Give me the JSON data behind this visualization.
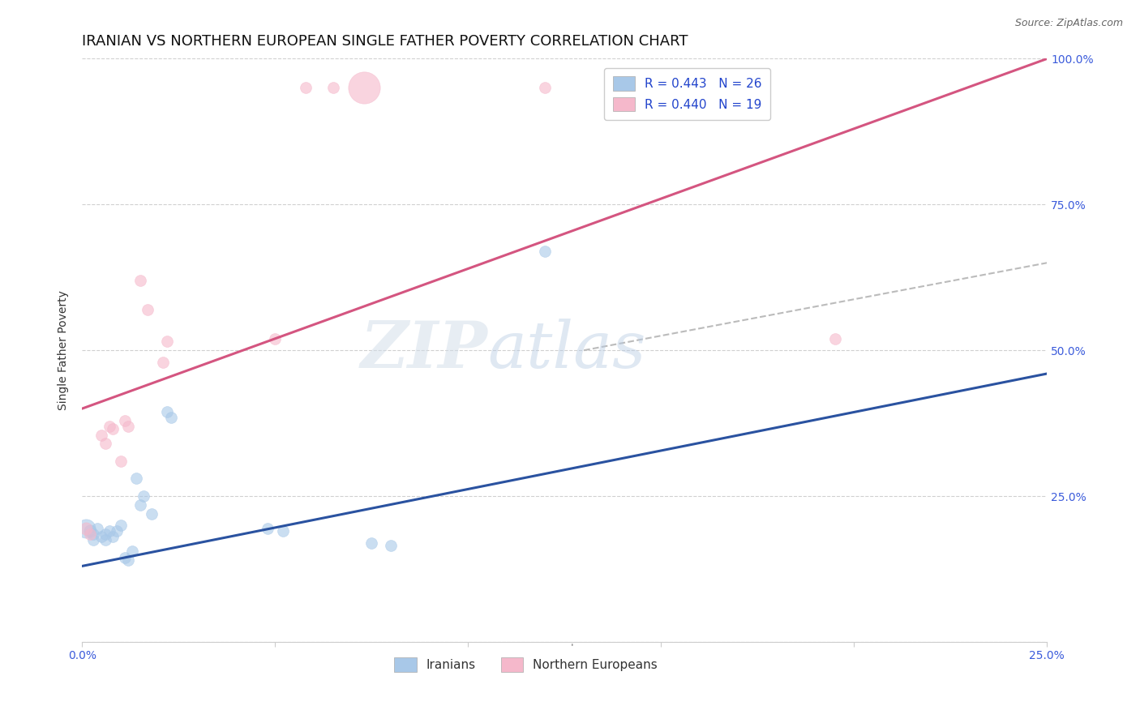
{
  "title": "IRANIAN VS NORTHERN EUROPEAN SINGLE FATHER POVERTY CORRELATION CHART",
  "source": "Source: ZipAtlas.com",
  "ylabel": "Single Father Poverty",
  "watermark_zip": "ZIP",
  "watermark_atlas": "atlas",
  "xlim": [
    0.0,
    0.25
  ],
  "ylim": [
    0.0,
    1.0
  ],
  "legend_r_blue": "R = 0.443",
  "legend_n_blue": "N = 26",
  "legend_r_pink": "R = 0.440",
  "legend_n_pink": "N = 19",
  "legend_label_blue": "Iranians",
  "legend_label_pink": "Northern Europeans",
  "blue_color": "#a8c8e8",
  "pink_color": "#f5b8cb",
  "line_blue_color": "#2a52a0",
  "line_pink_color": "#d45580",
  "line_dashed_color": "#bbbbbb",
  "blue_scatter": [
    [
      0.001,
      0.195
    ],
    [
      0.002,
      0.19
    ],
    [
      0.003,
      0.185
    ],
    [
      0.003,
      0.175
    ],
    [
      0.004,
      0.195
    ],
    [
      0.005,
      0.18
    ],
    [
      0.006,
      0.185
    ],
    [
      0.006,
      0.175
    ],
    [
      0.007,
      0.19
    ],
    [
      0.008,
      0.18
    ],
    [
      0.009,
      0.19
    ],
    [
      0.01,
      0.2
    ],
    [
      0.011,
      0.145
    ],
    [
      0.012,
      0.14
    ],
    [
      0.013,
      0.155
    ],
    [
      0.014,
      0.28
    ],
    [
      0.015,
      0.235
    ],
    [
      0.016,
      0.25
    ],
    [
      0.018,
      0.22
    ],
    [
      0.022,
      0.395
    ],
    [
      0.023,
      0.385
    ],
    [
      0.048,
      0.195
    ],
    [
      0.052,
      0.19
    ],
    [
      0.075,
      0.17
    ],
    [
      0.08,
      0.165
    ],
    [
      0.12,
      0.67
    ]
  ],
  "blue_scatter_sizes": [
    280,
    120,
    100,
    100,
    100,
    100,
    100,
    100,
    100,
    100,
    100,
    100,
    100,
    100,
    100,
    100,
    100,
    100,
    100,
    100,
    100,
    100,
    100,
    100,
    100,
    100
  ],
  "pink_scatter": [
    [
      0.001,
      0.195
    ],
    [
      0.002,
      0.185
    ],
    [
      0.005,
      0.355
    ],
    [
      0.006,
      0.34
    ],
    [
      0.007,
      0.37
    ],
    [
      0.008,
      0.365
    ],
    [
      0.01,
      0.31
    ],
    [
      0.011,
      0.38
    ],
    [
      0.012,
      0.37
    ],
    [
      0.015,
      0.62
    ],
    [
      0.017,
      0.57
    ],
    [
      0.021,
      0.48
    ],
    [
      0.022,
      0.515
    ],
    [
      0.05,
      0.52
    ],
    [
      0.058,
      0.95
    ],
    [
      0.065,
      0.95
    ],
    [
      0.073,
      0.95
    ],
    [
      0.12,
      0.95
    ],
    [
      0.195,
      0.52
    ]
  ],
  "pink_scatter_sizes": [
    120,
    100,
    100,
    100,
    100,
    100,
    100,
    100,
    100,
    100,
    100,
    100,
    100,
    100,
    100,
    100,
    800,
    100,
    100
  ],
  "blue_line_x": [
    0.0,
    0.25
  ],
  "blue_line_y": [
    0.13,
    0.46
  ],
  "pink_line_x": [
    0.0,
    0.25
  ],
  "pink_line_y": [
    0.4,
    1.0
  ],
  "dashed_line_x": [
    0.13,
    0.25
  ],
  "dashed_line_y": [
    0.5,
    0.65
  ],
  "title_fontsize": 13,
  "axis_label_fontsize": 10,
  "tick_fontsize": 10,
  "legend_fontsize": 11,
  "source_fontsize": 9
}
